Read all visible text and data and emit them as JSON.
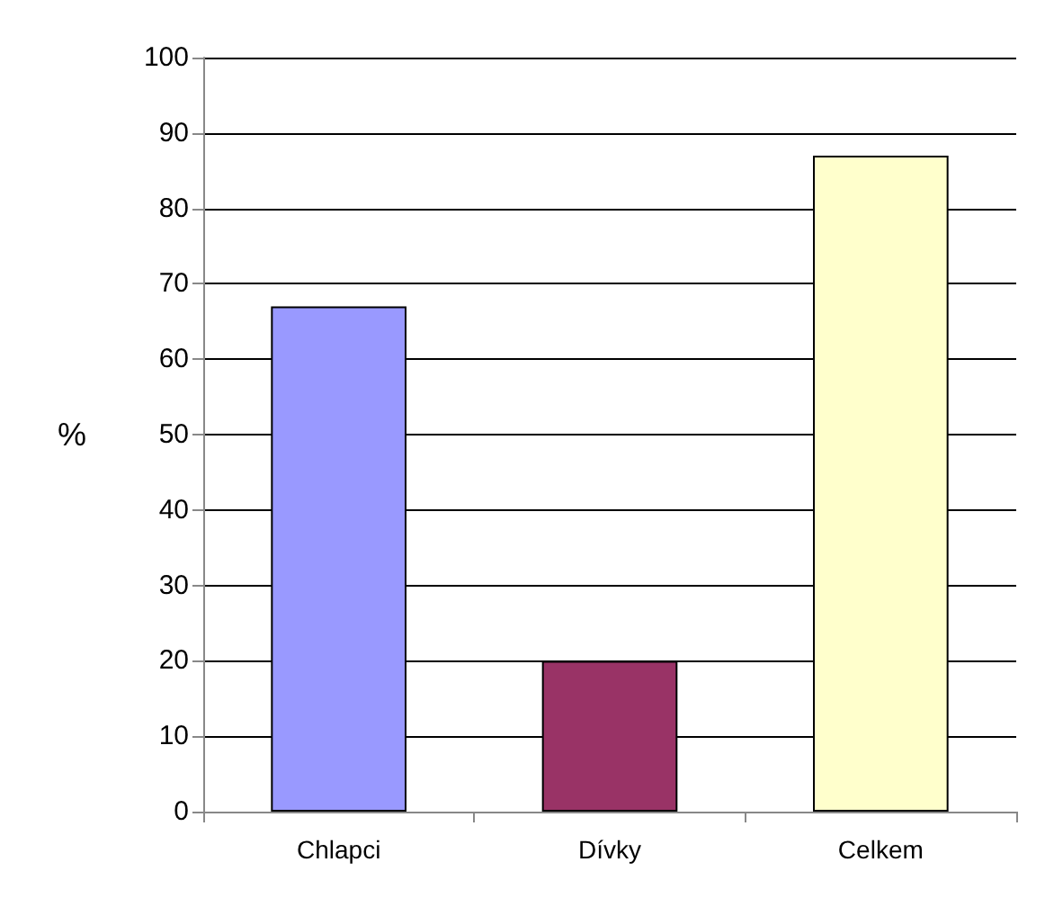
{
  "chart_data": {
    "type": "bar",
    "ylabel": "%",
    "categories": [
      "Chlapci",
      "Dívky",
      "Celkem"
    ],
    "values": [
      67,
      20,
      87
    ],
    "colors": [
      "#9999ff",
      "#993366",
      "#ffffcc"
    ],
    "ylim": [
      0,
      100
    ],
    "yticks": [
      0,
      10,
      20,
      30,
      40,
      50,
      60,
      70,
      80,
      90,
      100
    ],
    "grid": "y"
  }
}
